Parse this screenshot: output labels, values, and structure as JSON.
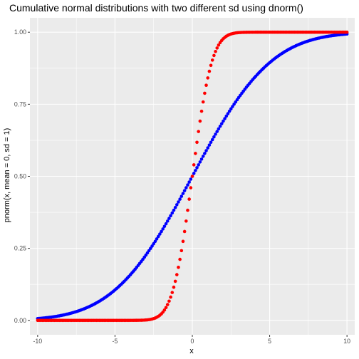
{
  "chart_data": {
    "type": "scatter",
    "title": "Cumulative normal distributions with two different sd using dnorm()",
    "xlabel": "x",
    "ylabel": "pnorm(x, mean = 0, sd = 1)",
    "xlim": [
      -10.5,
      10.5
    ],
    "ylim": [
      -0.05,
      1.05
    ],
    "x_ticks": [
      -10,
      -5,
      0,
      5,
      10
    ],
    "x_tick_labels": [
      "-10",
      "-5",
      "0",
      "5",
      "10"
    ],
    "y_ticks": [
      0,
      0.25,
      0.5,
      0.75,
      1
    ],
    "y_tick_labels": [
      "0.00",
      "0.25",
      "0.50",
      "0.75",
      "1.00"
    ],
    "grid": true,
    "legend": "none",
    "x_range": [
      -10,
      10
    ],
    "n_points": 201,
    "series": [
      {
        "distribution": "normal CDF",
        "mean": 0,
        "sd": 4,
        "color": "#0000ff"
      },
      {
        "distribution": "normal CDF",
        "mean": 0,
        "sd": 1,
        "color": "#ff0000"
      }
    ],
    "colors": {
      "panel_background": "#ebebeb",
      "grid": "#ffffff",
      "tick": "#333333"
    }
  }
}
